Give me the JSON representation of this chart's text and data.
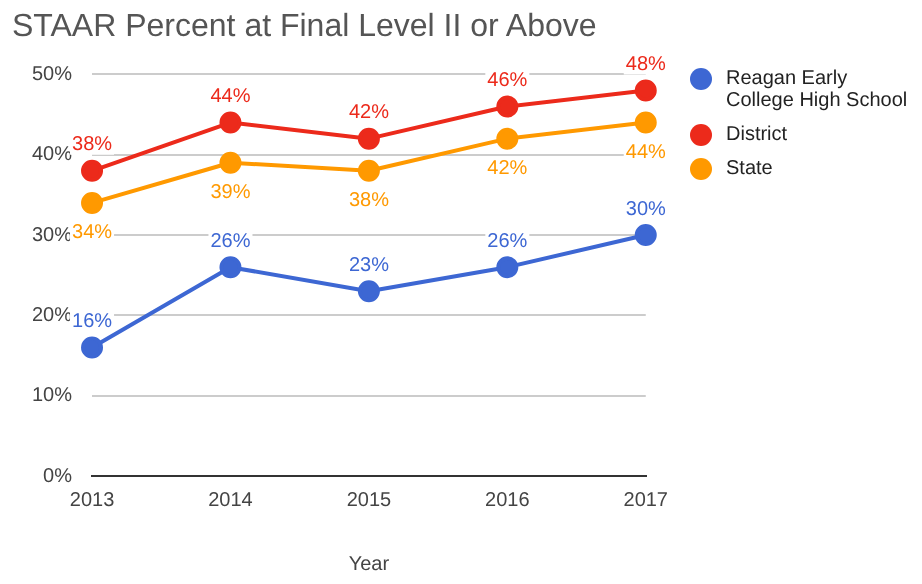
{
  "chart_data": {
    "type": "line",
    "title": "STAAR Percent at Final Level II or Above",
    "xlabel": "Year",
    "categories": [
      "2013",
      "2014",
      "2015",
      "2016",
      "2017"
    ],
    "series": [
      {
        "name": "Reagan Early College High School",
        "color": "#3d67d3",
        "values": [
          16,
          26,
          23,
          26,
          30
        ],
        "value_labels": [
          "16%",
          "26%",
          "23%",
          "26%",
          "30%"
        ]
      },
      {
        "name": "District",
        "color": "#ec2a1b",
        "values": [
          38,
          44,
          42,
          46,
          48
        ],
        "value_labels": [
          "38%",
          "44%",
          "42%",
          "46%",
          "48%"
        ]
      },
      {
        "name": "State",
        "color": "#ff9900",
        "values": [
          34,
          39,
          38,
          42,
          44
        ],
        "value_labels": [
          "34%",
          "39%",
          "38%",
          "42%",
          "44%"
        ]
      }
    ],
    "ylim": [
      0,
      50
    ],
    "yticks": [
      {
        "value": 0,
        "label": "0%"
      },
      {
        "value": 10,
        "label": "10%"
      },
      {
        "value": 20,
        "label": "20%"
      },
      {
        "value": 30,
        "label": "30%"
      },
      {
        "value": 40,
        "label": "40%"
      },
      {
        "value": 50,
        "label": "50%"
      }
    ],
    "grid": "y",
    "legend": "right",
    "marker": "circle",
    "line_style": "solid"
  }
}
